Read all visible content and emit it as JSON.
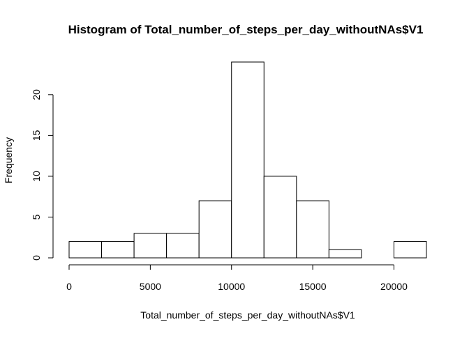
{
  "chart_data": {
    "type": "bar",
    "title": "Histogram of Total_number_of_steps_per_day_withoutNAs$V1",
    "xlabel": "Total_number_of_steps_per_day_withoutNAs$V1",
    "ylabel": "Frequency",
    "bins": [
      {
        "from": 0,
        "to": 2000,
        "count": 2
      },
      {
        "from": 2000,
        "to": 4000,
        "count": 2
      },
      {
        "from": 4000,
        "to": 6000,
        "count": 3
      },
      {
        "from": 6000,
        "to": 8000,
        "count": 3
      },
      {
        "from": 8000,
        "to": 10000,
        "count": 7
      },
      {
        "from": 10000,
        "to": 12000,
        "count": 24
      },
      {
        "from": 12000,
        "to": 14000,
        "count": 10
      },
      {
        "from": 14000,
        "to": 16000,
        "count": 7
      },
      {
        "from": 16000,
        "to": 18000,
        "count": 1
      },
      {
        "from": 18000,
        "to": 20000,
        "count": 0
      },
      {
        "from": 20000,
        "to": 22000,
        "count": 2
      }
    ],
    "xlim": [
      0,
      22000
    ],
    "ylim": [
      0,
      24
    ],
    "xticks": [
      0,
      5000,
      10000,
      15000,
      20000
    ],
    "yticks": [
      0,
      5,
      10,
      15,
      20
    ],
    "grid": false,
    "legend": "none",
    "bar_fill": "#ffffff",
    "bar_stroke": "#000000"
  }
}
